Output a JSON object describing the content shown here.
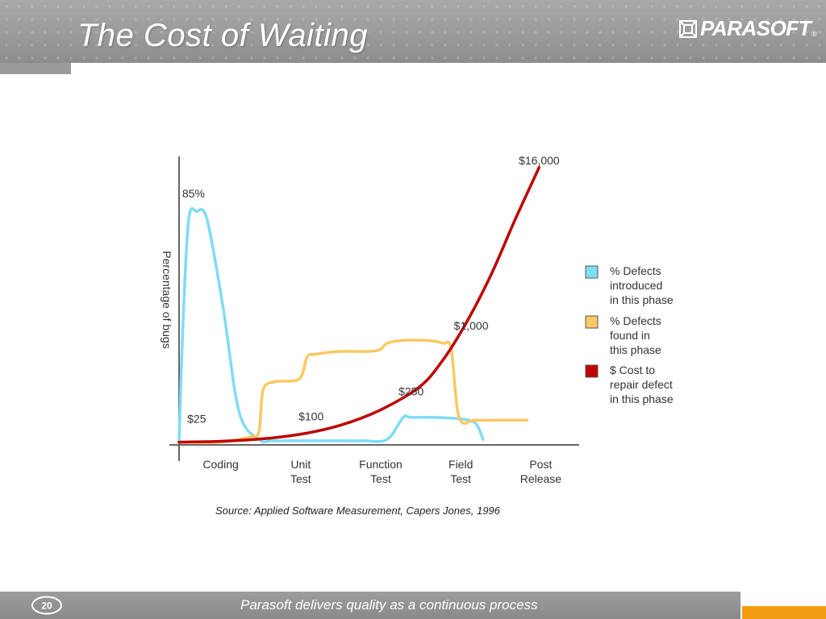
{
  "slide": {
    "title": "The Cost of Waiting",
    "logo_text": "PARASOFT",
    "logo_reg": "®",
    "footer_text": "Parasoft delivers quality as a continuous process",
    "footer_badge_icon": "20-years-badge-icon",
    "source_text": "Source: Applied Software Measurement, Capers Jones, 1996",
    "colors": {
      "header": "#9b9b9b",
      "footer_accent": "#f39c12",
      "introduced": "#7fdcf4",
      "found": "#fcc863",
      "cost": "#c00000"
    }
  },
  "chart_data": {
    "type": "line",
    "title": "",
    "ylabel": "Percentage of bugs",
    "xlabel": "",
    "categories": [
      "Coding",
      "Unit Test",
      "Function Test",
      "Field Test",
      "Post Release"
    ],
    "category_lines": [
      [
        "Coding"
      ],
      [
        "Unit",
        "Test"
      ],
      [
        "Function",
        "Test"
      ],
      [
        "Field",
        "Test"
      ],
      [
        "Post",
        "Release"
      ]
    ],
    "series": [
      {
        "name": "% Defects introduced in this phase",
        "legend_lines": [
          "% Defects",
          "introduced",
          "in this phase"
        ],
        "color": "#7fdcf4",
        "x": [
          0.0,
          0.05,
          0.12,
          0.22,
          0.35,
          0.55,
          0.75,
          1.0,
          1.15,
          1.3,
          1.7,
          2.0,
          2.3,
          2.6,
          2.8,
          2.9,
          3.2,
          3.5,
          3.7,
          3.8
        ],
        "values": [
          1,
          45,
          82,
          85,
          82,
          50,
          12,
          2,
          1.5,
          1.5,
          1.5,
          1.5,
          1.5,
          2,
          10,
          10,
          10,
          9.5,
          8,
          2
        ]
      },
      {
        "name": "% Defects found in this phase",
        "legend_lines": [
          "% Defects",
          "found in",
          "this phase"
        ],
        "color": "#fcc863",
        "x": [
          0.0,
          0.5,
          0.9,
          1.0,
          1.05,
          1.2,
          1.5,
          1.6,
          1.7,
          2.0,
          2.3,
          2.5,
          2.6,
          2.8,
          3.1,
          3.3,
          3.4,
          3.5,
          3.7,
          4.0,
          4.35
        ],
        "values": [
          1,
          1,
          3,
          5,
          20,
          23,
          24,
          32,
          33,
          34,
          34,
          34.5,
          37,
          38,
          38,
          37,
          35,
          10,
          9,
          9,
          9
        ]
      },
      {
        "name": "$ Cost to repair defect in this phase",
        "legend_lines": [
          "$ Cost to",
          "repair defect",
          "in this phase"
        ],
        "color": "#c00000",
        "x": [
          0.0,
          0.5,
          1.0,
          1.5,
          2.0,
          2.5,
          3.0,
          3.3,
          3.6,
          3.9,
          4.2,
          4.5
        ],
        "values": [
          1,
          1.3,
          2.1,
          3.8,
          7,
          12.5,
          21,
          31,
          45,
          62,
          82,
          101
        ]
      }
    ],
    "annotations": [
      {
        "text": "85%",
        "x": 0.18,
        "y": 90
      },
      {
        "text": "$25",
        "x": 0.22,
        "y": 8
      },
      {
        "text": "$100",
        "x": 1.65,
        "y": 9
      },
      {
        "text": "$250",
        "x": 2.9,
        "y": 18
      },
      {
        "text": "$1,000",
        "x": 3.65,
        "y": 42
      },
      {
        "text": "$16,000",
        "x": 4.5,
        "y": 102
      }
    ],
    "ylim": [
      0,
      105
    ],
    "xlim": [
      0,
      5
    ],
    "grid": false,
    "legend": "right"
  }
}
